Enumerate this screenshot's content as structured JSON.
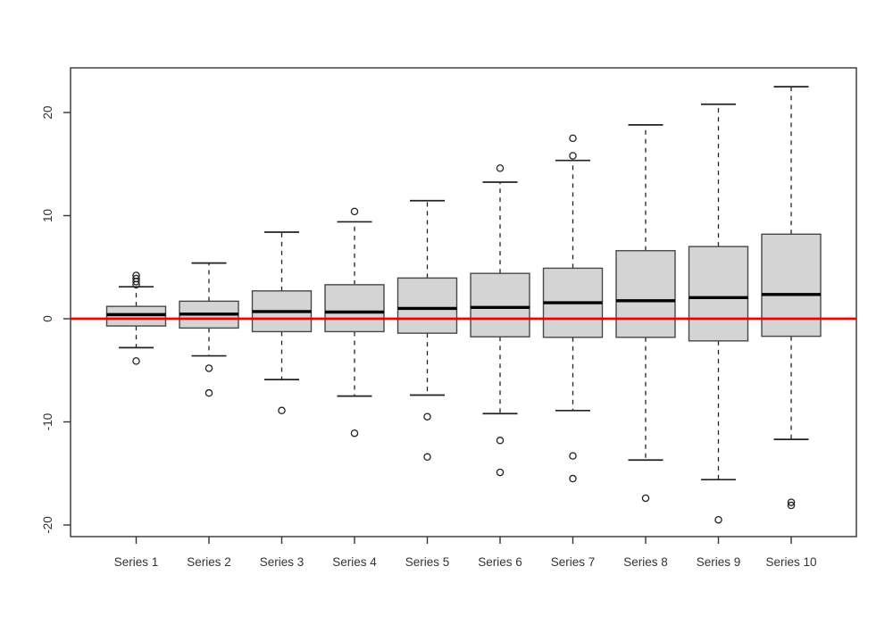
{
  "chart_data": {
    "type": "boxplot",
    "title": "",
    "xlabel": "",
    "ylabel": "",
    "ylim": [
      -22,
      24
    ],
    "yticks": [
      -20,
      -10,
      0,
      10,
      20
    ],
    "ytick_labels": [
      "-20",
      "-10",
      "0",
      "10",
      "20"
    ],
    "grid": false,
    "legend": "none",
    "reference_line": {
      "y": 0,
      "color": "#F20000",
      "style": "solid"
    },
    "colors": {
      "box_fill": "#d4d4d4",
      "box_border": "#474747",
      "median": "#000000",
      "whisker": "#222222",
      "outlier": "#222222",
      "axis": "#333333",
      "tick_label": "#333333"
    },
    "categories": [
      "Series 1",
      "Series 2",
      "Series 3",
      "Series 4",
      "Series 5",
      "Series 6",
      "Series 7",
      "Series 8",
      "Series 9",
      "Series 10"
    ],
    "series": [
      {
        "label": "Series 1",
        "whisker_low": -2.8,
        "q1": -0.7,
        "median": 0.4,
        "q3": 1.2,
        "whisker_high": 3.1,
        "outliers": [
          3.3,
          3.6,
          3.9,
          4.2,
          -4.1
        ]
      },
      {
        "label": "Series 2",
        "whisker_low": -3.6,
        "q1": -0.9,
        "median": 0.45,
        "q3": 1.7,
        "whisker_high": 5.4,
        "outliers": [
          -4.8,
          -7.2
        ]
      },
      {
        "label": "Series 3",
        "whisker_low": -5.9,
        "q1": -1.25,
        "median": 0.7,
        "q3": 2.7,
        "whisker_high": 8.4,
        "outliers": [
          -8.9
        ]
      },
      {
        "label": "Series 4",
        "whisker_low": -7.5,
        "q1": -1.25,
        "median": 0.65,
        "q3": 3.3,
        "whisker_high": 9.4,
        "outliers": [
          10.4,
          -11.1
        ]
      },
      {
        "label": "Series 5",
        "whisker_low": -7.4,
        "q1": -1.4,
        "median": 1.0,
        "q3": 3.95,
        "whisker_high": 11.45,
        "outliers": [
          -9.5,
          -13.4
        ]
      },
      {
        "label": "Series 6",
        "whisker_low": -9.2,
        "q1": -1.75,
        "median": 1.1,
        "q3": 4.4,
        "whisker_high": 13.25,
        "outliers": [
          14.6,
          -11.8,
          -14.9
        ]
      },
      {
        "label": "Series 7",
        "whisker_low": -8.9,
        "q1": -1.8,
        "median": 1.55,
        "q3": 4.9,
        "whisker_high": 15.35,
        "outliers": [
          17.5,
          15.8,
          -13.3,
          -15.5
        ]
      },
      {
        "label": "Series 8",
        "whisker_low": -13.7,
        "q1": -1.8,
        "median": 1.75,
        "q3": 6.6,
        "whisker_high": 18.8,
        "outliers": [
          -17.4
        ]
      },
      {
        "label": "Series 9",
        "whisker_low": -15.6,
        "q1": -2.15,
        "median": 2.05,
        "q3": 7.0,
        "whisker_high": 20.8,
        "outliers": [
          -19.5
        ]
      },
      {
        "label": "Series 10",
        "whisker_low": -11.7,
        "q1": -1.7,
        "median": 2.35,
        "q3": 8.2,
        "whisker_high": 22.5,
        "outliers": [
          -17.8,
          -18.1
        ]
      }
    ]
  }
}
